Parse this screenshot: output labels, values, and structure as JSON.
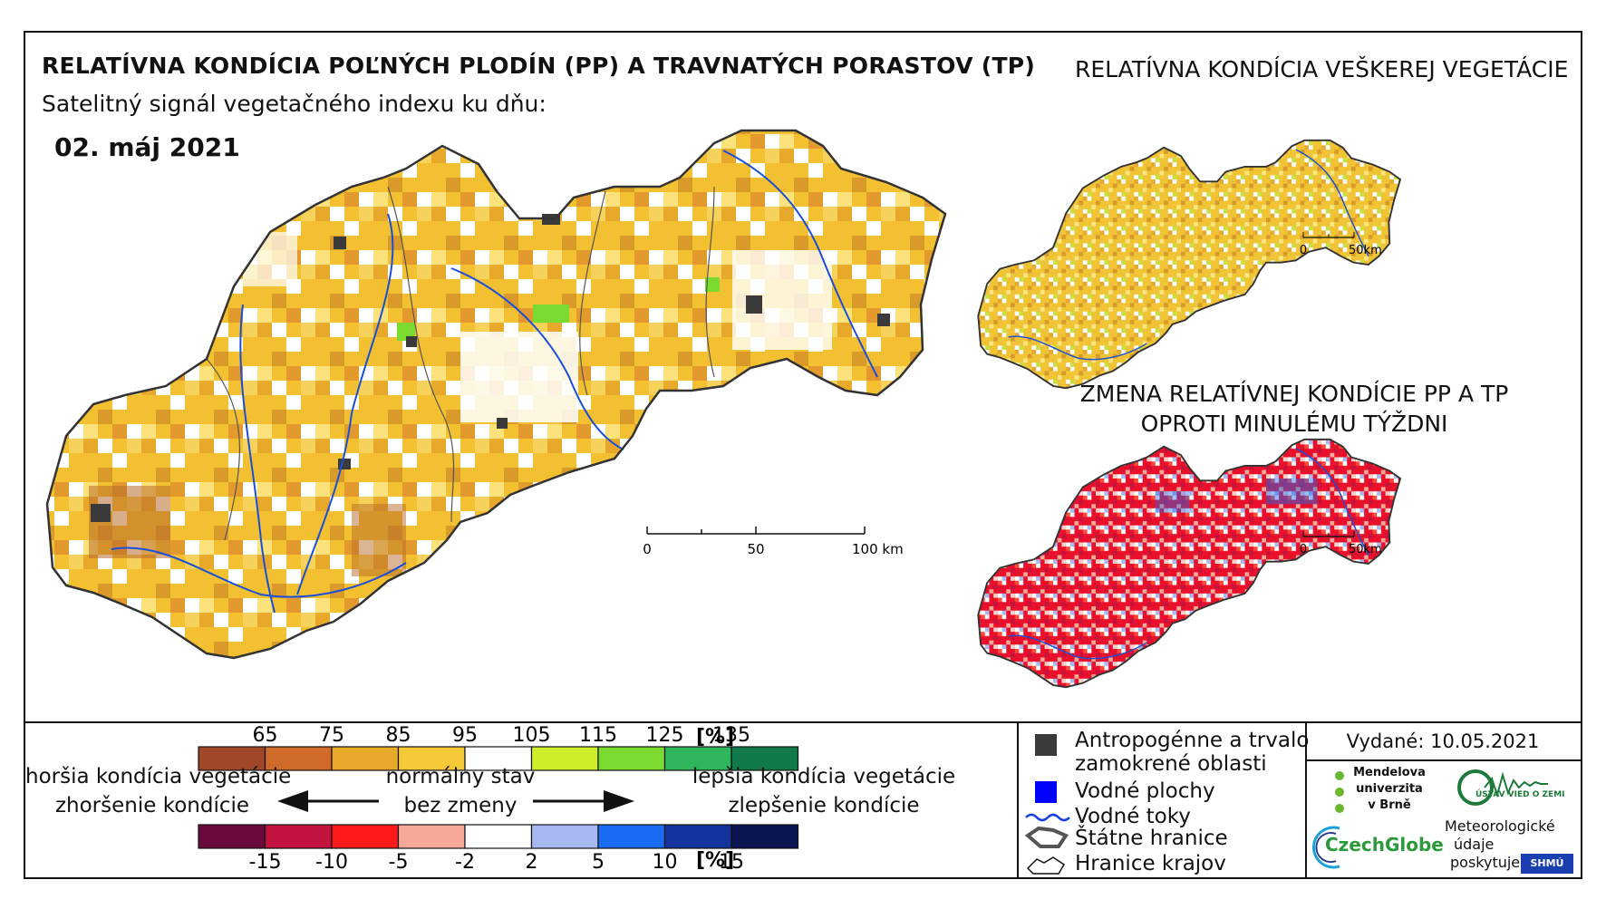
{
  "title": "RELATÍVNA KONDÍCIA POĽNÝCH PLODÍN (PP) A TRAVNATÝCH PORASTOV (TP)",
  "subtitle": "Satelitný signál vegetačného indexu ku dňu:",
  "date": "02. máj 2021",
  "right_title": "RELATÍVNA KONDÍCIA VEŠKEREJ VEGETÁCIE",
  "change_title_line1": "ZMENA RELATÍVNEJ KONDÍCIE PP A TP",
  "change_title_line2": "OPROTI MINULÉMU TÝŽDNI",
  "scale_main": {
    "labels": [
      "0",
      "50",
      "100 km"
    ]
  },
  "scale_small": {
    "labels": [
      "0",
      "50km"
    ]
  },
  "legend_condition": {
    "labels": [
      "65",
      "75",
      "85",
      "95",
      "105",
      "115",
      "125",
      "135"
    ],
    "unit": "[%]",
    "colors": [
      "#a0472a",
      "#d06a28",
      "#e8a82a",
      "#f5c838",
      "#ffffff",
      "#cfee2a",
      "#7ada30",
      "#2fb55a",
      "#127a4a"
    ]
  },
  "legend_change": {
    "labels": [
      "-15",
      "-10",
      "-5",
      "-2",
      "2",
      "5",
      "10",
      "15"
    ],
    "unit": "[%]",
    "colors": [
      "#6a0a3a",
      "#c2143e",
      "#ff1a1a",
      "#f7a898",
      "#ffffff",
      "#a8b8f0",
      "#1a6cf5",
      "#12349c",
      "#0a1552"
    ]
  },
  "legend_text": {
    "worse_condition": "horšia kondícia vegetácie",
    "worse_change": "zhoršenie kondície",
    "normal": "normálny stav",
    "nochange": "bez zmeny",
    "better_condition": "lepšia kondícia vegetácie",
    "better_change": "zlepšenie kondície"
  },
  "symbols": {
    "anthropogenic_line1": "Antropogénne a trvalo",
    "anthropogenic_line2": "zamokrené oblasti",
    "water_bodies": "Vodné plochy",
    "streams": "Vodné toky",
    "state_border": "Štátne hranice",
    "region_border": "Hranice krajov"
  },
  "issued": "Vydané: 10.05.2021",
  "logos": {
    "mendel_line1": "Mendelova",
    "mendel_line2": "univerzita",
    "mendel_line3": "v Brně",
    "ustav": "ÚSTAV VIED O ZEMI",
    "czechglobe": "CzechGlobe",
    "meteo_line1": "Meteorologické",
    "meteo_line2": "údaje",
    "meteo_line3": "poskytuje:",
    "shmu": "SHMÚ"
  }
}
